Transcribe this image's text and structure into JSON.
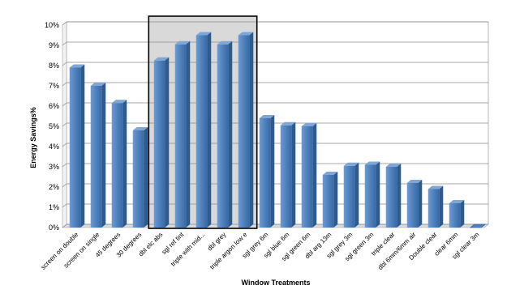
{
  "chart_data": {
    "type": "bar",
    "title": "",
    "xlabel": "Window Treatments",
    "ylabel": "Energy Savings%",
    "ylim": [
      0,
      10
    ],
    "yticks": [
      "0%",
      "1%",
      "2%",
      "3%",
      "4%",
      "5%",
      "6%",
      "7%",
      "8%",
      "9%",
      "10%"
    ],
    "grid": true,
    "categories": [
      "screen on double",
      "screen on single",
      "45 degrees",
      "30 degrees",
      "dbl elc abs",
      "sgl ref tint",
      "triple with mid...",
      "dbl grey",
      "triple argon low e",
      "sgl grey 6m",
      "sgl blue 6m",
      "sgl green 6m",
      "dbl arg 13m",
      "sgl grey 3m",
      "sgl green 3m",
      "triple clear",
      "dbl 6mm/6mm air",
      "Double clear",
      "clear 6mm",
      "sgl clear 3m"
    ],
    "values": [
      7.9,
      7.0,
      6.15,
      4.8,
      8.25,
      9.05,
      9.5,
      9.05,
      9.5,
      5.4,
      5.05,
      5.0,
      2.6,
      3.05,
      3.1,
      3.0,
      2.2,
      1.9,
      1.2,
      0.0
    ],
    "highlight_range": [
      4,
      8
    ],
    "bar_color": "#4f81bd",
    "highlight_fill": "#d9d9d9"
  }
}
